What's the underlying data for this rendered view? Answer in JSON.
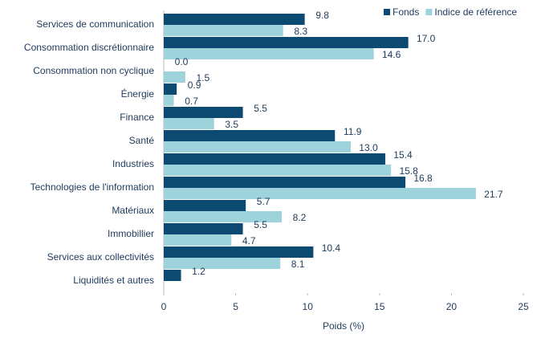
{
  "chart_data": {
    "type": "hbar",
    "xlabel": "Poids (%)",
    "categories": [
      "Services de communication",
      "Consommation discrétionnaire",
      "Consommation non cyclique",
      "Énergie",
      "Finance",
      "Santé",
      "Industries",
      "Technologies de l'information",
      "Matériaux",
      "Immobillier",
      "Services aux collectivités",
      "Liquidités et autres"
    ],
    "series": [
      {
        "name": "Fonds",
        "color": "#0d4a72",
        "values": [
          9.8,
          17.0,
          0.0,
          0.9,
          5.5,
          11.9,
          15.4,
          16.8,
          5.7,
          5.5,
          10.4,
          1.2
        ],
        "value_labels": [
          "9.8",
          "17.0",
          "0.0",
          "0.9",
          "5.5",
          "11.9",
          "15.4",
          "16.8",
          "5.7",
          "5.5",
          "10.4",
          "1.2"
        ]
      },
      {
        "name": "Indice de référence",
        "color": "#9fd3dc",
        "values": [
          8.3,
          14.6,
          1.5,
          0.7,
          3.5,
          13.0,
          15.8,
          21.7,
          8.2,
          4.7,
          8.1,
          null
        ],
        "value_labels": [
          "8.3",
          "14.6",
          "1.5",
          "0.7",
          "3.5",
          "13.0",
          "15.8",
          "21.7",
          "8.2",
          "4.7",
          "8.1",
          null
        ]
      }
    ],
    "xlim": [
      0,
      25
    ],
    "xticks": [
      0,
      5,
      10,
      15,
      20,
      25
    ],
    "legend": "top-right"
  }
}
